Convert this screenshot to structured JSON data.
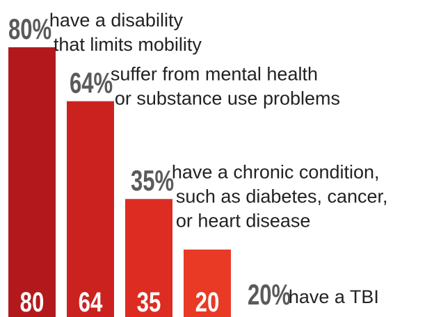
{
  "chart_data": {
    "type": "bar",
    "categories": [
      "80%",
      "64%",
      "35%",
      "20%"
    ],
    "values": [
      80,
      64,
      35,
      20
    ],
    "bar_labels": [
      "80",
      "64",
      "35",
      "20"
    ],
    "annotations": [
      {
        "percent": "80%",
        "lines": [
          "have a disability",
          "that limits mobility"
        ]
      },
      {
        "percent": "64%",
        "lines": [
          "suffer from mental health",
          "or substance use problems"
        ]
      },
      {
        "percent": "35%",
        "lines": [
          "have a chronic condition,",
          "such as diabetes, cancer,",
          "or heart disease"
        ]
      },
      {
        "percent": "20%",
        "lines": [
          "have a TBI"
        ]
      }
    ],
    "ylim": [
      0,
      100
    ],
    "colors": [
      "#b3191c",
      "#cc221f",
      "#dd2c22",
      "#e83a25"
    ],
    "text_colors": {
      "percent": "#5a5a5a",
      "body": "#222222",
      "bar_label": "#ffffff"
    },
    "grid": false,
    "legend": "none"
  }
}
